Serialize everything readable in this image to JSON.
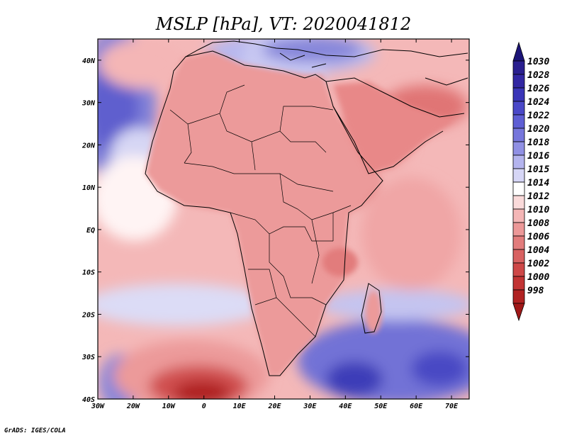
{
  "title": "MSLP [hPa], VT: 2020041812",
  "credit": "GrADS: IGES/COLA",
  "x_axis": {
    "ticks": [
      {
        "label": "30W",
        "lon": -30
      },
      {
        "label": "20W",
        "lon": -20
      },
      {
        "label": "10W",
        "lon": -10
      },
      {
        "label": "0",
        "lon": 0
      },
      {
        "label": "10E",
        "lon": 10
      },
      {
        "label": "20E",
        "lon": 20
      },
      {
        "label": "30E",
        "lon": 30
      },
      {
        "label": "40E",
        "lon": 40
      },
      {
        "label": "50E",
        "lon": 50
      },
      {
        "label": "60E",
        "lon": 60
      },
      {
        "label": "70E",
        "lon": 70
      }
    ],
    "range": [
      -30,
      75
    ]
  },
  "y_axis": {
    "ticks": [
      {
        "label": "40N",
        "lat": 40
      },
      {
        "label": "30N",
        "lat": 30
      },
      {
        "label": "20N",
        "lat": 20
      },
      {
        "label": "10N",
        "lat": 10
      },
      {
        "label": "EQ",
        "lat": 0
      },
      {
        "label": "10S",
        "lat": -10
      },
      {
        "label": "20S",
        "lat": -20
      },
      {
        "label": "30S",
        "lat": -30
      },
      {
        "label": "40S",
        "lat": -40
      }
    ],
    "range": [
      -40,
      45
    ]
  },
  "colorbar": {
    "levels": [
      {
        "label": "1030",
        "color": "#2a1f8f"
      },
      {
        "label": "1028",
        "color": "#3227a3"
      },
      {
        "label": "1026",
        "color": "#3a35b8"
      },
      {
        "label": "1024",
        "color": "#4a48c8"
      },
      {
        "label": "1022",
        "color": "#5e5ed4"
      },
      {
        "label": "1020",
        "color": "#7676dc"
      },
      {
        "label": "1018",
        "color": "#9090e4"
      },
      {
        "label": "1016",
        "color": "#b4b4ee"
      },
      {
        "label": "1015",
        "color": "#d6d6f6"
      },
      {
        "label": "1014",
        "color": "#ffffff"
      },
      {
        "label": "1012",
        "color": "#fadada"
      },
      {
        "label": "1010",
        "color": "#f4b6b6"
      },
      {
        "label": "1008",
        "color": "#ec9898"
      },
      {
        "label": "1006",
        "color": "#e27c7c"
      },
      {
        "label": "1004",
        "color": "#d86262"
      },
      {
        "label": "1002",
        "color": "#ce4848"
      },
      {
        "label": "1000",
        "color": "#c23434"
      },
      {
        "label": "998",
        "color": "#b02222"
      }
    ],
    "overflow_high_color": "#1c1478",
    "overflow_low_color": "#a01818"
  },
  "colors": {
    "ocean_neutral": "#fbd6d6",
    "land_base": "#ec9a9a",
    "border": "#000000"
  }
}
